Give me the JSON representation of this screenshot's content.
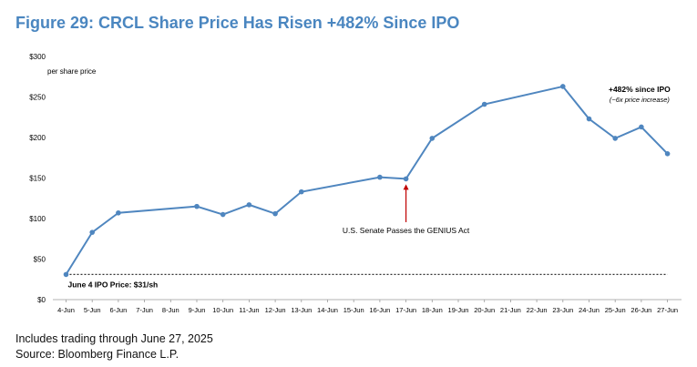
{
  "title": "Figure 29: CRCL Share Price Has Risen +482% Since IPO",
  "footnote_1": "Includes trading through June 27, 2025",
  "footnote_2": "Source: Bloomberg Finance L.P.",
  "colors": {
    "title": "#4a86c0",
    "line": "#4f86bf",
    "arrow": "#c00000"
  },
  "chart_data": {
    "type": "line",
    "title": "Figure 29: CRCL Share Price Has Risen +482% Since IPO",
    "ylabel": "per share price",
    "xlabel": "",
    "ylim": [
      0,
      300
    ],
    "y_ticks": [
      0,
      50,
      100,
      150,
      200,
      250,
      300
    ],
    "y_tick_labels": [
      "$0",
      "$50",
      "$100",
      "$150",
      "$200",
      "$250",
      "$300"
    ],
    "categories": [
      "4-Jun",
      "5-Jun",
      "6-Jun",
      "7-Jun",
      "8-Jun",
      "9-Jun",
      "10-Jun",
      "11-Jun",
      "12-Jun",
      "13-Jun",
      "14-Jun",
      "15-Jun",
      "16-Jun",
      "17-Jun",
      "18-Jun",
      "19-Jun",
      "20-Jun",
      "21-Jun",
      "22-Jun",
      "23-Jun",
      "24-Jun",
      "25-Jun",
      "26-Jun",
      "27-Jun"
    ],
    "series": [
      {
        "name": "CRCL share price",
        "points": [
          {
            "x": "4-Jun",
            "y": 31
          },
          {
            "x": "5-Jun",
            "y": 83
          },
          {
            "x": "6-Jun",
            "y": 107
          },
          {
            "x": "9-Jun",
            "y": 115
          },
          {
            "x": "10-Jun",
            "y": 105
          },
          {
            "x": "11-Jun",
            "y": 117
          },
          {
            "x": "12-Jun",
            "y": 106
          },
          {
            "x": "13-Jun",
            "y": 133
          },
          {
            "x": "16-Jun",
            "y": 151
          },
          {
            "x": "17-Jun",
            "y": 149
          },
          {
            "x": "18-Jun",
            "y": 199
          },
          {
            "x": "20-Jun",
            "y": 241
          },
          {
            "x": "23-Jun",
            "y": 263
          },
          {
            "x": "24-Jun",
            "y": 223
          },
          {
            "x": "25-Jun",
            "y": 199
          },
          {
            "x": "26-Jun",
            "y": 213
          },
          {
            "x": "27-Jun",
            "y": 180
          }
        ]
      }
    ],
    "reference_line": {
      "value": 31,
      "label": "June 4 IPO Price: $31/sh"
    },
    "annotations": [
      {
        "x": "17-Jun",
        "text": "U.S. Senate Passes the GENIUS Act"
      },
      {
        "x": "26-Jun",
        "text": "+482% since IPO",
        "subtext": "(~6x price increase)"
      }
    ],
    "grid": false
  }
}
